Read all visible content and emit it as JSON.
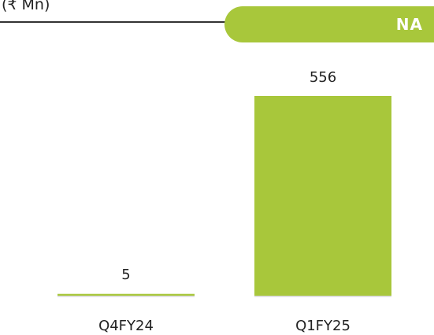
{
  "unit_label": "(₹ Mn)",
  "badge": {
    "text": "NA",
    "color": "#a8c73b"
  },
  "colors": {
    "bar": "#a8c73b",
    "baseline": "#d5d5d5"
  },
  "chart_data": {
    "type": "bar",
    "categories": [
      "Q4FY24",
      "Q1FY25"
    ],
    "values": [
      5,
      556
    ],
    "data_labels": [
      "5",
      "556"
    ],
    "title": "",
    "xlabel": "",
    "ylabel": "(₹ Mn)",
    "ylim": [
      0,
      556
    ],
    "grid": false,
    "legend": "none"
  }
}
